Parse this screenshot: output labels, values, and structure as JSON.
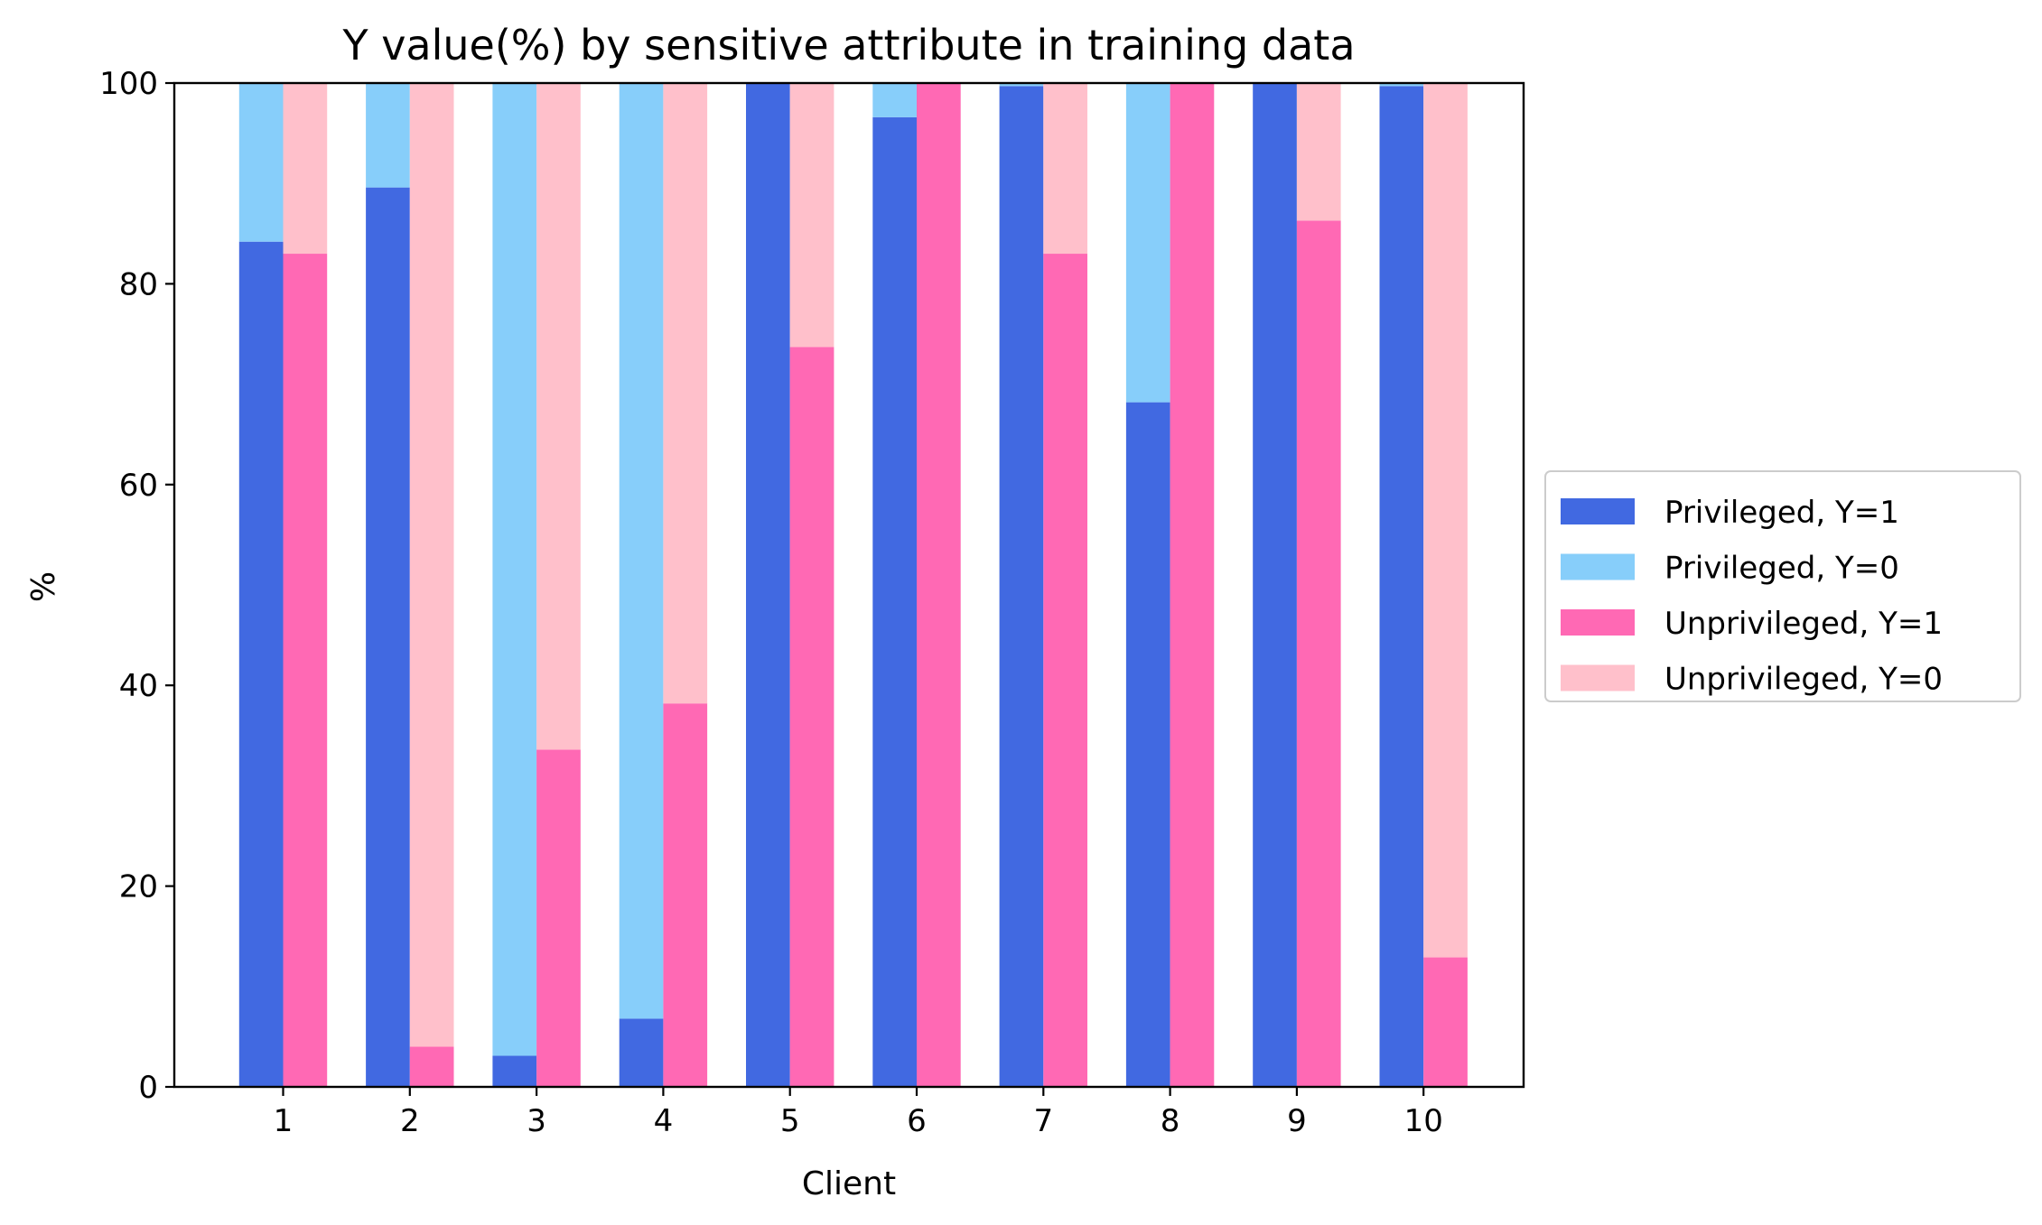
{
  "chart_data": {
    "type": "bar",
    "stacked": true,
    "title": "Y value(%) by sensitive attribute in training data",
    "xlabel": "Client",
    "ylabel": "%",
    "ylim": [
      0,
      100
    ],
    "yticks": [
      0,
      20,
      40,
      60,
      80,
      100
    ],
    "grid": false,
    "legend_position": "right",
    "categories": [
      "1",
      "2",
      "3",
      "4",
      "5",
      "6",
      "7",
      "8",
      "9",
      "10"
    ],
    "series": [
      {
        "name": "Privileged, Y=1",
        "group": "privileged",
        "color": "#4169E1",
        "values": [
          84.2,
          89.6,
          3.1,
          6.8,
          100,
          96.6,
          99.7,
          68.2,
          100,
          99.7
        ]
      },
      {
        "name": "Privileged, Y=0",
        "group": "privileged",
        "color": "#87CEFA",
        "values": [
          15.8,
          10.4,
          96.9,
          93.2,
          0,
          3.4,
          0.3,
          31.8,
          0,
          0.3
        ]
      },
      {
        "name": "Unprivileged, Y=1",
        "group": "unprivileged",
        "color": "#FF69B4",
        "values": [
          83.0,
          4.0,
          33.6,
          38.2,
          73.7,
          100,
          83.0,
          100,
          86.3,
          12.9
        ]
      },
      {
        "name": "Unprivileged, Y=0",
        "group": "unprivileged",
        "color": "#FFC0CB",
        "values": [
          17.0,
          96.0,
          66.4,
          61.8,
          26.3,
          0,
          17.0,
          0,
          13.7,
          87.1
        ]
      }
    ]
  }
}
